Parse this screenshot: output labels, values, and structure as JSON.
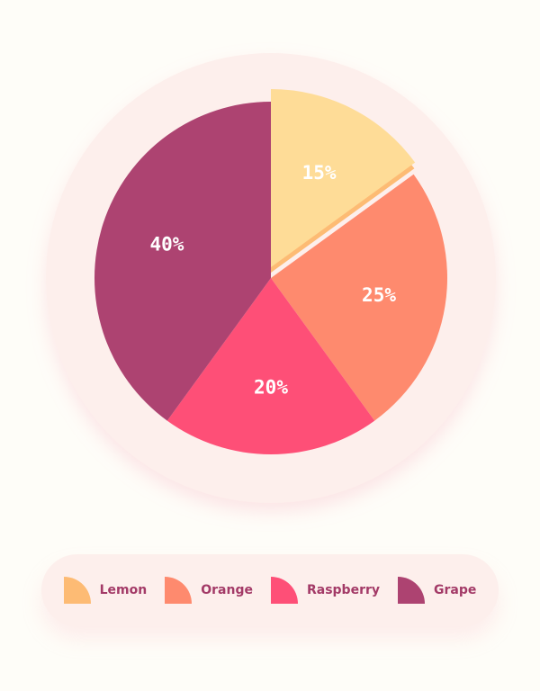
{
  "chart_data": {
    "type": "pie",
    "categories": [
      "Lemon",
      "Orange",
      "Raspberry",
      "Grape"
    ],
    "values": [
      15,
      25,
      20,
      40
    ],
    "labels": [
      "15%",
      "25%",
      "20%",
      "40%"
    ],
    "colors": [
      "#FEDC97",
      "#FE8A6E",
      "#FE4F77",
      "#AD4371"
    ],
    "legend_colors": [
      "#FDBB74",
      "#FE8A6E",
      "#FE4F77",
      "#AD4371"
    ],
    "exploded": "Lemon",
    "legend_position": "bottom"
  }
}
